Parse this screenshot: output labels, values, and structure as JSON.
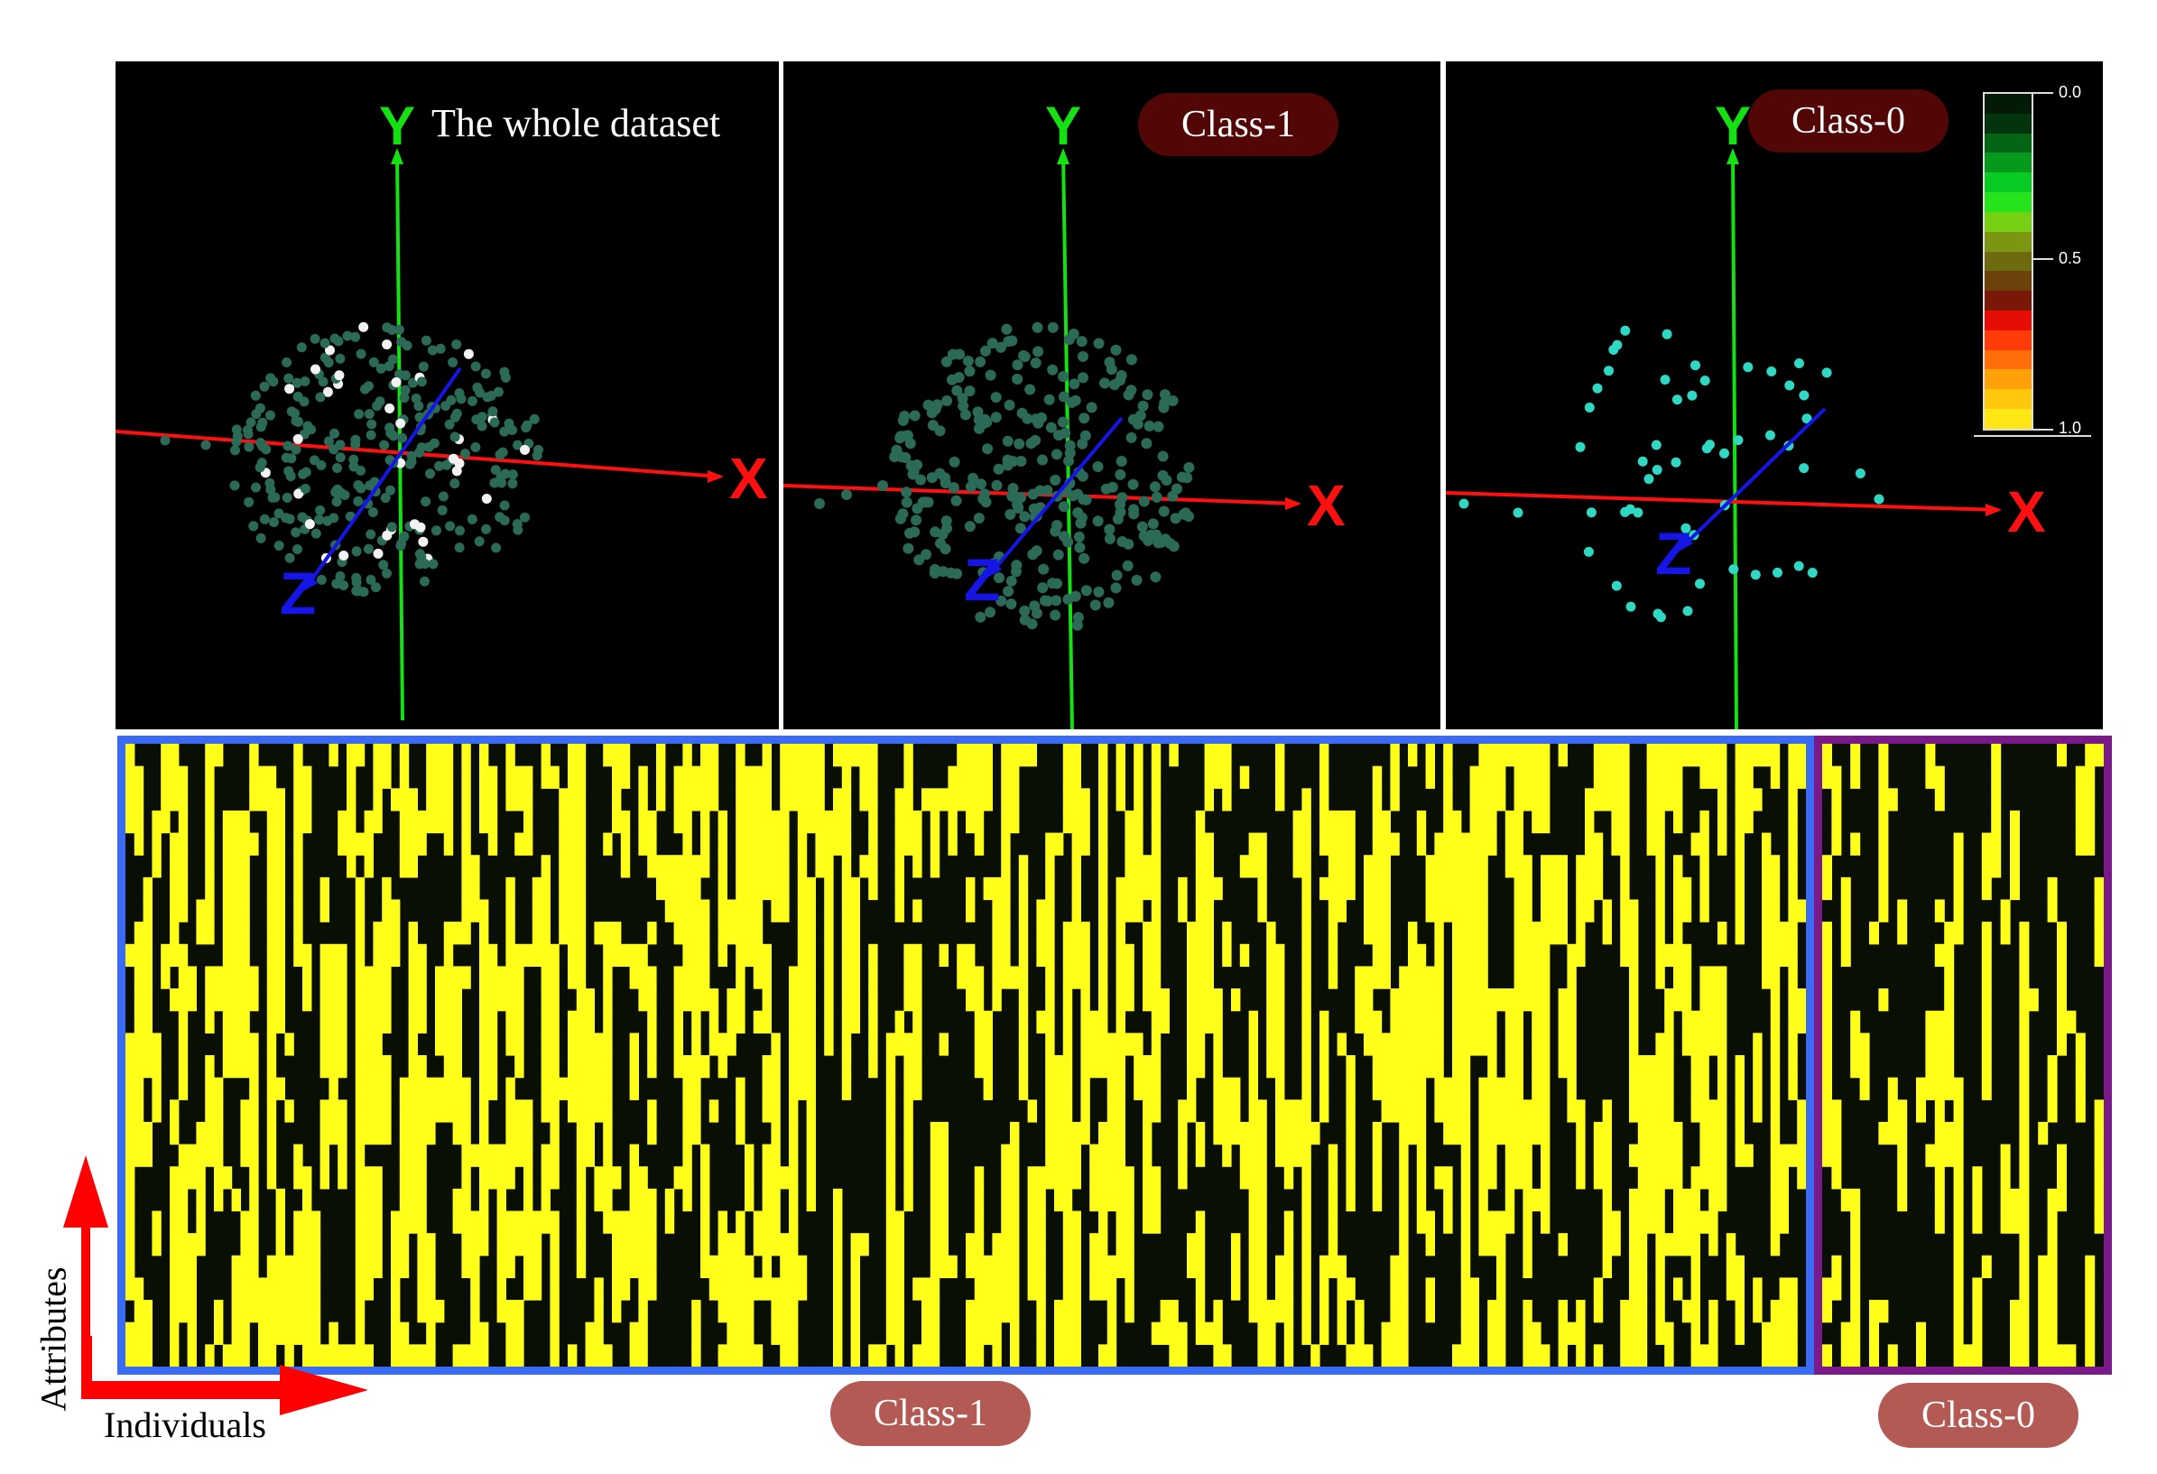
{
  "panels": [
    {
      "title": "The whole dataset",
      "title_style": "plain"
    },
    {
      "title": "Class-1",
      "title_style": "pill"
    },
    {
      "title": "Class-0",
      "title_style": "pill"
    }
  ],
  "axes": {
    "x": "X",
    "y": "Y",
    "z": "Z"
  },
  "colors": {
    "x_axis": "#ff1010",
    "y_axis": "#14e014",
    "z_axis": "#1515e6",
    "class1_point": "#2a6a57",
    "class0_point": "#2fd8c2",
    "mixed_white_point": "#f2f2f2",
    "heatmap_on": "#ffff1a",
    "heatmap_off": "#0a0f05",
    "class1_frame": "#3a6bf5",
    "class0_frame": "#7a1a8a",
    "pill_dark": "#520606",
    "pill_light": "#b35a55"
  },
  "colorbar": {
    "ticks": [
      "0.0",
      "0.5",
      "1.0"
    ],
    "colors": [
      "#021a06",
      "#03340d",
      "#046614",
      "#06991c",
      "#08cc24",
      "#26e41c",
      "#78d014",
      "#7c9614",
      "#6e6a10",
      "#6b420a",
      "#7a1808",
      "#e60e04",
      "#ff3b08",
      "#ff6e08",
      "#ffa20a",
      "#ffc80c",
      "#ffe614"
    ]
  },
  "heatmap": {
    "class1_label": "Class-1",
    "class0_label": "Class-0",
    "row_axis_label": "Attributes",
    "col_axis_label": "Individuals"
  }
}
